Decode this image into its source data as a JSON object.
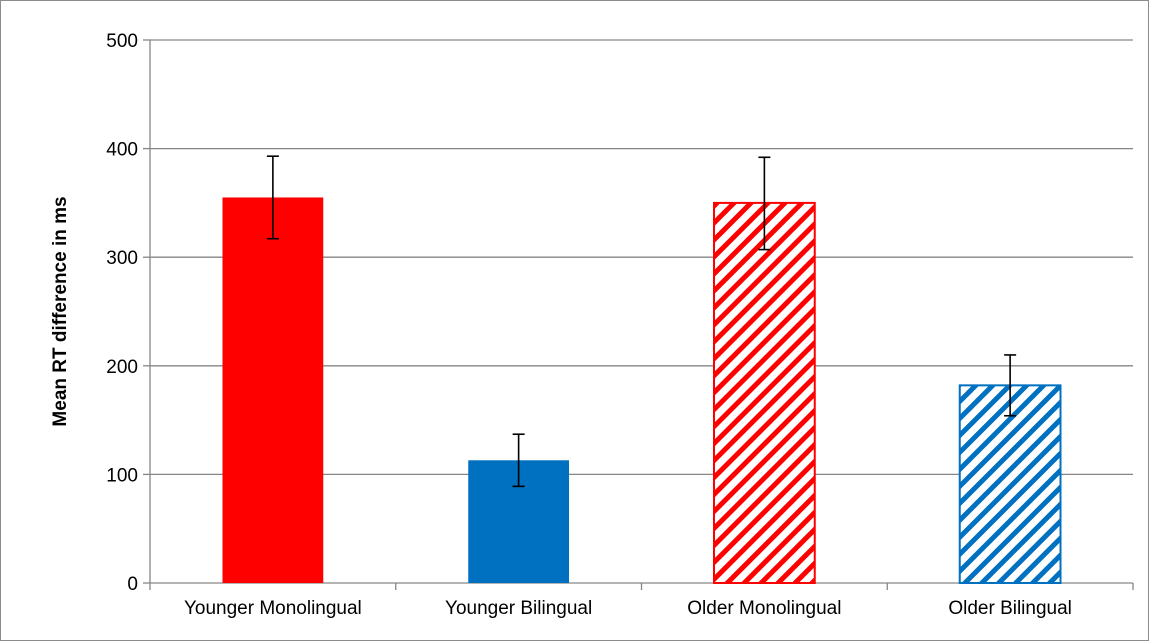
{
  "chart_data": {
    "type": "bar",
    "title": "",
    "xlabel": "",
    "ylabel": "Mean RT difference in ms",
    "ylim": [
      0,
      500
    ],
    "yticks": [
      0,
      100,
      200,
      300,
      400,
      500
    ],
    "grid": true,
    "legend": "none",
    "categories": [
      "Younger Monolingual",
      "Younger Bilingual",
      "Older Monolingual",
      "Older Bilingual"
    ],
    "values": [
      355,
      113,
      350,
      182
    ],
    "error_low": [
      317,
      89,
      307,
      154
    ],
    "error_high": [
      393,
      137,
      392,
      210
    ],
    "fills": [
      {
        "color": "#ff0000",
        "pattern": "solid"
      },
      {
        "color": "#0070c0",
        "pattern": "solid"
      },
      {
        "color": "#ff0000",
        "pattern": "diagonal-stripes"
      },
      {
        "color": "#0070c0",
        "pattern": "diagonal-stripes"
      }
    ],
    "gridline_color": "#868686",
    "axis_color": "#868686",
    "error_bar_color": "#000000"
  }
}
